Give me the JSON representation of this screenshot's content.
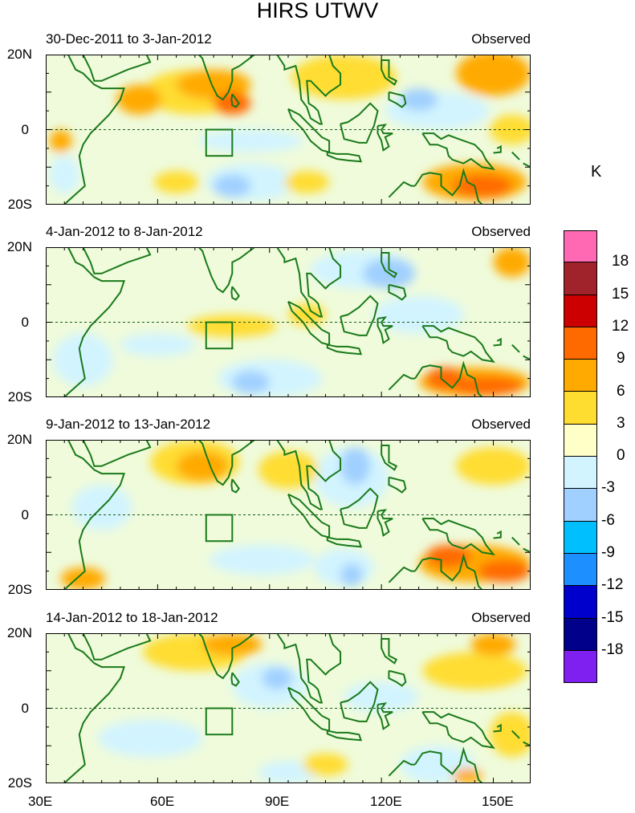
{
  "title": "HIRS UTWV",
  "units": "K",
  "panels": [
    {
      "date_range": "30-Dec-2011 to 3-Jan-2012",
      "label": "Observed"
    },
    {
      "date_range": "4-Jan-2012 to 8-Jan-2012",
      "label": "Observed"
    },
    {
      "date_range": "9-Jan-2012 to 13-Jan-2012",
      "label": "Observed"
    },
    {
      "date_range": "14-Jan-2012 to 18-Jan-2012",
      "label": "Observed"
    }
  ],
  "lat_labels": [
    "20N",
    "0",
    "20S"
  ],
  "lon_labels": [
    "30E",
    "60E",
    "90E",
    "120E",
    "150E"
  ],
  "colorbar": {
    "labels": [
      "18",
      "15",
      "12",
      "9",
      "6",
      "3",
      "0",
      "-3",
      "-6",
      "-9",
      "-12",
      "-15",
      "-18"
    ],
    "colors": [
      "#ff69b4",
      "#a0222a",
      "#cc0000",
      "#ff6a00",
      "#ffaa00",
      "#ffdd30",
      "#ffffc8",
      "#d2f4ff",
      "#a0d0ff",
      "#00bfff",
      "#1e8fff",
      "#0000cd",
      "#00008b",
      "#8020f0"
    ]
  },
  "map": {
    "lon_range": [
      30,
      160
    ],
    "lat_range": [
      -20,
      20
    ],
    "coast_color": "#1a7a1a"
  }
}
